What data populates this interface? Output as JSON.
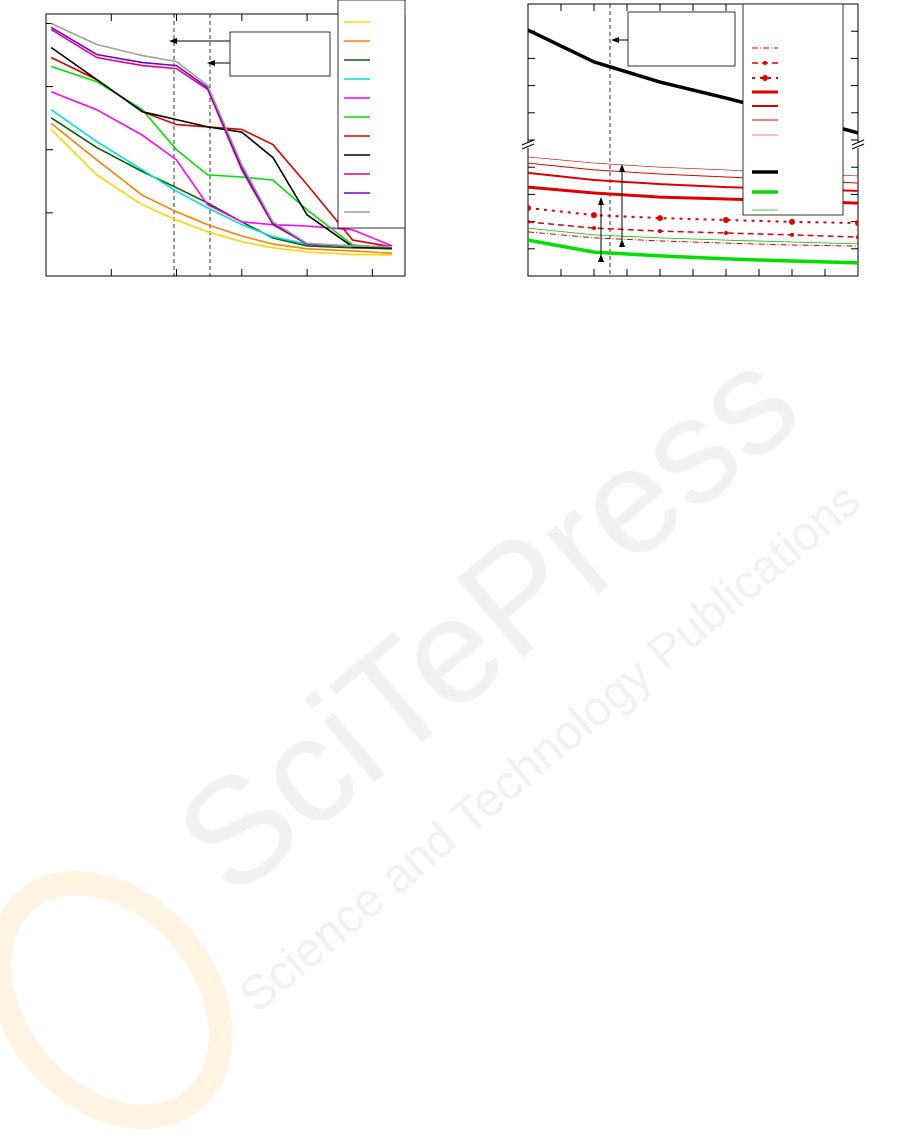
{
  "chart_data": [
    {
      "type": "line",
      "xscale": "log",
      "yscale": "log",
      "x": [
        1.2,
        6,
        30,
        100,
        300,
        1000,
        3000,
        10000,
        50000,
        200000
      ],
      "xlim": [
        1,
        316228
      ],
      "ylim": [
        1,
        14125
      ],
      "xticks": [
        10,
        100,
        1000,
        10000,
        100000
      ],
      "yticks": [
        10,
        100,
        1000,
        10000
      ],
      "series": [
        {
          "color": "#ffd400",
          "values": [
            210,
            40,
            13.4,
            7.7,
            5.0,
            3.5,
            2.8,
            2.4,
            2.2,
            2.15
          ]
        },
        {
          "color": "#ff8000",
          "values": [
            260,
            69,
            19,
            10.4,
            6.5,
            4.3,
            3.2,
            2.7,
            2.5,
            2.3
          ]
        },
        {
          "color": "#006400",
          "values": [
            320,
            108,
            45,
            25,
            14.4,
            7.2,
            4.0,
            3.0,
            2.8,
            2.7
          ]
        },
        {
          "color": "#00e0e0",
          "values": [
            430,
            134,
            48,
            22,
            12,
            6.5,
            4.2,
            3.2,
            3.0,
            2.9
          ]
        },
        {
          "color": "#ff00ff",
          "values": [
            830,
            430,
            170,
            69,
            13.4,
            7.2,
            6.5,
            6.2,
            5.4,
            3.0
          ]
        },
        {
          "color": "#00e000",
          "values": [
            2080,
            1200,
            430,
            100,
            40,
            37,
            33,
            11.2,
            3.1,
            2.8
          ]
        },
        {
          "color": "#e00000",
          "values": [
            2890,
            1290,
            400,
            250,
            230,
            210,
            120,
            28,
            3.7,
            2.9
          ]
        },
        {
          "color": "#000000",
          "values": [
            4160,
            1290,
            400,
            300,
            230,
            190,
            75,
            9.3,
            2.9,
            2.8
          ]
        },
        {
          "color": "#e0008a",
          "values": [
            8030,
            2890,
            2150,
            1930,
            900,
            48,
            6.5,
            3.2,
            3.0,
            2.9
          ]
        },
        {
          "color": "#7a00c8",
          "values": [
            8650,
            3220,
            2400,
            2150,
            960,
            52,
            6.7,
            3.2,
            3.0,
            2.9
          ]
        },
        {
          "color": "#a0a0a0",
          "values": [
            10000,
            4640,
            3100,
            2490,
            1040,
            58,
            7.2,
            3.3,
            3.0,
            2.9
          ]
        }
      ]
    },
    {
      "type": "line",
      "x": [
        0,
        2,
        4,
        6,
        8,
        10
      ],
      "xlim": [
        0,
        10
      ],
      "ylim": [
        0,
        10
      ],
      "xticks": [
        0,
        1,
        2,
        3,
        4,
        5,
        6,
        7,
        8,
        9,
        10
      ],
      "yticks": [
        0,
        1,
        2,
        3,
        4,
        5,
        6,
        7,
        8,
        9,
        10
      ],
      "series": [
        {
          "color": "#e00000",
          "width": 1,
          "dash": "6 2 1 2",
          "values": [
            1.62,
            1.4,
            1.29,
            1.21,
            1.14,
            1.1
          ]
        },
        {
          "color": "#e00000",
          "width": 1.5,
          "dash": "6 4",
          "marker": 2,
          "values": [
            1.99,
            1.76,
            1.65,
            1.58,
            1.51,
            1.43
          ]
        },
        {
          "color": "#e00000",
          "width": 2,
          "dash": "3 5",
          "marker": 3,
          "values": [
            2.5,
            2.24,
            2.13,
            2.06,
            1.99,
            1.95
          ]
        },
        {
          "color": "#e00000",
          "width": 3,
          "values": [
            3.27,
            3.05,
            2.9,
            2.83,
            2.76,
            2.68
          ]
        },
        {
          "color": "#e00000",
          "width": 2,
          "values": [
            3.79,
            3.53,
            3.38,
            3.27,
            3.2,
            3.13
          ]
        },
        {
          "color": "#e00000",
          "width": 1,
          "values": [
            4.15,
            3.9,
            3.75,
            3.64,
            3.53,
            3.42
          ]
        },
        {
          "color": "#e00000",
          "width": 0.6,
          "values": [
            4.38,
            4.15,
            4.0,
            3.9,
            3.79,
            3.68
          ]
        },
        {
          "color": "#000000",
          "width": 3.5,
          "values": [
            9.04,
            7.87,
            7.13,
            6.54,
            5.92,
            5.26
          ]
        },
        {
          "color": "#00e000",
          "width": 3.5,
          "values": [
            1.32,
            0.88,
            0.74,
            0.63,
            0.55,
            0.48
          ]
        },
        {
          "color": "#00c000",
          "width": 0.8,
          "values": [
            1.76,
            1.51,
            1.4,
            1.32,
            1.25,
            1.18
          ]
        }
      ]
    }
  ],
  "watermark": {
    "title": "SciTePress",
    "subtitle": "Science and Technology Publications"
  }
}
